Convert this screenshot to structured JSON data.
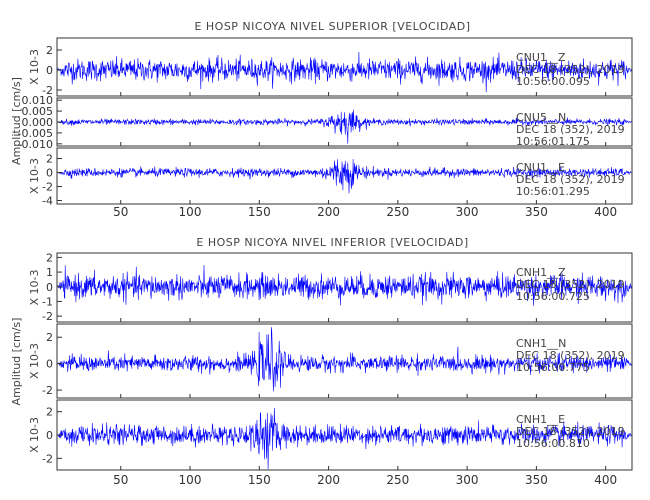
{
  "chart_data": [
    {
      "type": "line",
      "title": "E HOSP NICOYA NIVEL SUPERIOR [VELOCIDAD]",
      "ylabel": "Amplitud [cm/s]",
      "xlabel": "",
      "xlim": [
        4,
        419
      ],
      "xticks": [
        50,
        100,
        150,
        200,
        250,
        300,
        350,
        400
      ],
      "color": "#0000ff",
      "traces": [
        {
          "channel": "CNU1__Z",
          "date": "DEC 18 (352), 2019",
          "time": "10:56:00.095",
          "scale_label": "X 10-3",
          "ylim": [
            -2.6,
            3.2
          ],
          "yticks": [
            "2",
            "0",
            "-2"
          ],
          "ytick_values": [
            2,
            0,
            -2
          ],
          "noise_amplitude": 1.0,
          "burst": {
            "center": 0,
            "width": 1,
            "gain": 0
          }
        },
        {
          "channel": "CNU5__N",
          "date": "DEC 18 (352), 2019",
          "time": "10:56:01.175",
          "scale_label": "",
          "ylim": [
            -0.011,
            0.011
          ],
          "yticks": [
            "0.010",
            "0.005",
            "0.000",
            "-0.005",
            "-0.010"
          ],
          "ytick_values": [
            0.01,
            0.005,
            0.0,
            -0.005,
            -0.01
          ],
          "noise_amplitude": 0.0012,
          "burst": {
            "center": 212,
            "width": 7,
            "gain": 4.5
          }
        },
        {
          "channel": "CNU1__E",
          "date": "DEC 18 (352), 2019",
          "time": "10:56:01.295",
          "scale_label": "X 10-3",
          "ylim": [
            -4.5,
            3.5
          ],
          "yticks": [
            "2",
            "0",
            "-2",
            "-4"
          ],
          "ytick_values": [
            2,
            0,
            -2,
            -4
          ],
          "noise_amplitude": 0.55,
          "burst": {
            "center": 211,
            "width": 8,
            "gain": 3.2
          }
        }
      ]
    },
    {
      "type": "line",
      "title": "E HOSP NICOYA NIVEL INFERIOR [VELOCIDAD]",
      "ylabel": "Amplitud [cm/s]",
      "xlabel": "",
      "xlim": [
        4,
        419
      ],
      "xticks": [
        50,
        100,
        150,
        200,
        250,
        300,
        350,
        400
      ],
      "color": "#0000ff",
      "traces": [
        {
          "channel": "CNH1__Z",
          "date": "DEC 18 (352), 2019",
          "time": "10:56:00.725",
          "scale_label": "X 10-3",
          "ylim": [
            -2.4,
            2.3
          ],
          "yticks": [
            "2",
            "1",
            "0",
            "-1",
            "-2"
          ],
          "ytick_values": [
            2,
            1,
            0,
            -1,
            -2
          ],
          "noise_amplitude": 0.75,
          "burst": {
            "center": 0,
            "width": 1,
            "gain": 0
          }
        },
        {
          "channel": "CNH1__N",
          "date": "DEC 18 (352), 2019",
          "time": "10:56:00.775",
          "scale_label": "X 10-3",
          "ylim": [
            -2.6,
            3.0
          ],
          "yticks": [
            "2",
            "0",
            "-2"
          ],
          "ytick_values": [
            2,
            0,
            -2
          ],
          "noise_amplitude": 0.55,
          "burst": {
            "center": 157,
            "width": 6,
            "gain": 3.0
          }
        },
        {
          "channel": "CNH1__E",
          "date": "DEC 18 (352), 2019",
          "time": "10:56:00.810",
          "scale_label": "X 10-3",
          "ylim": [
            -3.0,
            3.0
          ],
          "yticks": [
            "2",
            "0",
            "-2"
          ],
          "ytick_values": [
            2,
            0,
            -2
          ],
          "noise_amplitude": 0.75,
          "burst": {
            "center": 155,
            "width": 7,
            "gain": 1.8
          }
        }
      ]
    }
  ]
}
